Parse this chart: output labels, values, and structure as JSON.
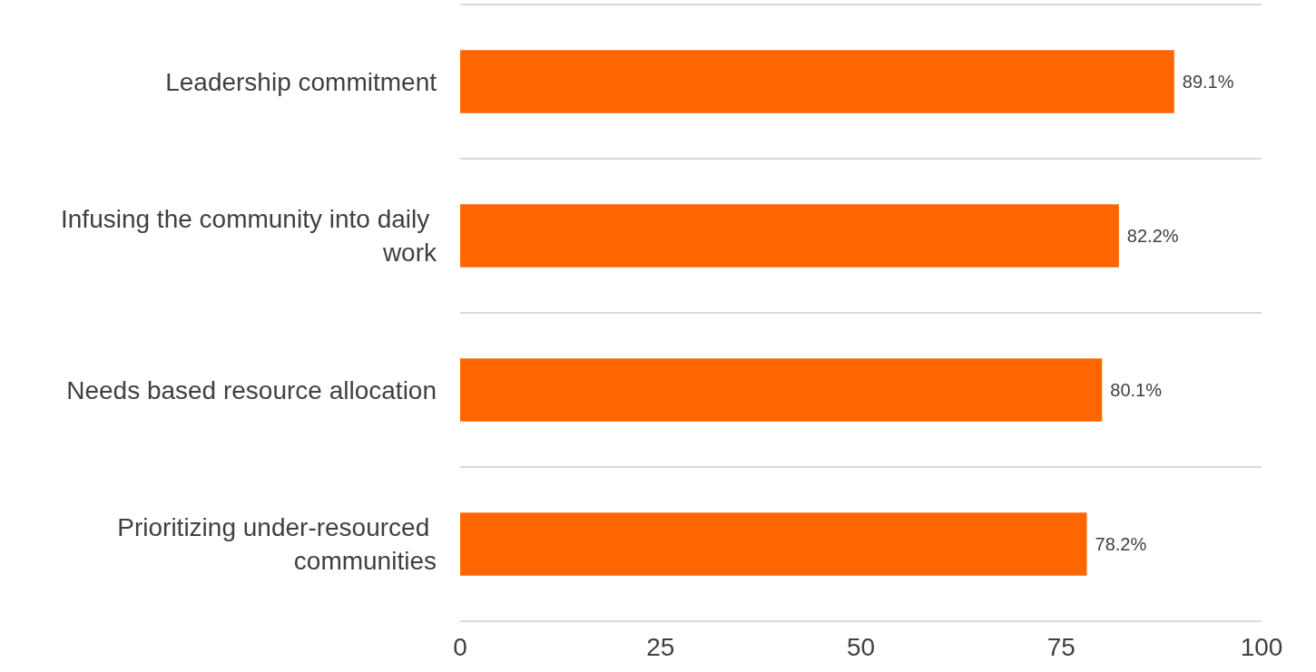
{
  "chart_data": {
    "type": "bar",
    "orientation": "horizontal",
    "categories": [
      "Leadership commitment",
      "Infusing the community into daily work",
      "Needs based resource allocation",
      "Prioritizing under-resourced communities"
    ],
    "values": [
      89.1,
      82.2,
      80.1,
      78.2
    ],
    "value_labels": [
      "89.1%",
      "82.2%",
      "80.1%",
      "78.2%"
    ],
    "color": "#ff6600",
    "xlim": [
      0,
      100
    ],
    "xticks": [
      0,
      25,
      50,
      75,
      100
    ],
    "grid": "y"
  }
}
